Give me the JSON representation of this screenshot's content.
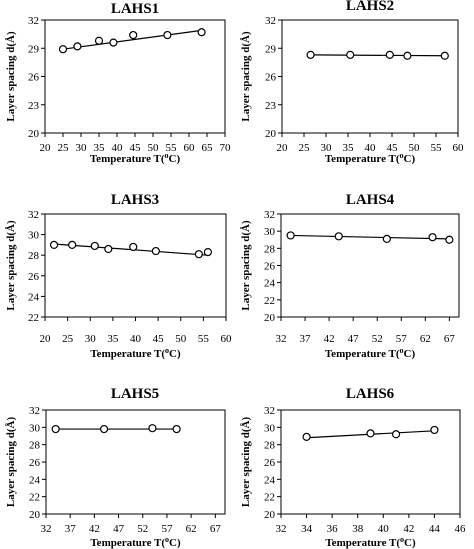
{
  "chart_data": [
    {
      "type": "scatter",
      "title": "LAHS1",
      "xlabel": "Temperature T(",
      "xlabel_unit": "C)",
      "ylabel": "Layer spacing d(Å)",
      "xlim": [
        20,
        70
      ],
      "ylim": [
        20,
        32
      ],
      "xticks": [
        20,
        25,
        30,
        35,
        40,
        45,
        50,
        55,
        60,
        65,
        70
      ],
      "yticks": [
        20,
        23,
        26,
        29,
        32
      ],
      "points": {
        "x": [
          25,
          29,
          35,
          39,
          44.5,
          54,
          63.5
        ],
        "y": [
          28.9,
          29.2,
          29.8,
          29.6,
          30.4,
          30.4,
          30.7
        ]
      },
      "trend": {
        "x": [
          25,
          63.5
        ],
        "y": [
          28.9,
          30.9
        ]
      }
    },
    {
      "type": "scatter",
      "title": "LAHS2",
      "xlabel": "Temperature T(",
      "xlabel_unit": "C)",
      "ylabel": "Layer spacing d(Å)",
      "xlim": [
        20,
        60
      ],
      "ylim": [
        20,
        32
      ],
      "xticks": [
        20,
        25,
        30,
        35,
        40,
        45,
        50,
        55,
        60
      ],
      "yticks": [
        20,
        23,
        26,
        29,
        32
      ],
      "points": {
        "x": [
          26.5,
          35.5,
          44.5,
          48.5,
          57
        ],
        "y": [
          28.3,
          28.3,
          28.3,
          28.2,
          28.2
        ]
      },
      "trend": {
        "x": [
          26.5,
          57
        ],
        "y": [
          28.3,
          28.2
        ]
      }
    },
    {
      "type": "scatter",
      "title": "LAHS3",
      "xlabel": "Temperature T(",
      "xlabel_unit": "C)",
      "ylabel": "Layer spacing d(Å)",
      "xlim": [
        20,
        60
      ],
      "ylim": [
        22,
        32
      ],
      "xticks": [
        20,
        25,
        30,
        35,
        40,
        45,
        50,
        55,
        60
      ],
      "yticks": [
        22,
        24,
        26,
        28,
        30,
        32
      ],
      "points": {
        "x": [
          22,
          26,
          31,
          34,
          39.5,
          44.5,
          54,
          56
        ],
        "y": [
          29.0,
          29.0,
          28.9,
          28.6,
          28.8,
          28.4,
          28.1,
          28.3
        ]
      },
      "trend": {
        "x": [
          21.5,
          56
        ],
        "y": [
          29.1,
          28.0
        ]
      }
    },
    {
      "type": "scatter",
      "title": "LAHS4",
      "xlabel": "Temperature T(",
      "xlabel_unit": "C)",
      "ylabel": "Layer spacing d(Å)",
      "xlim": [
        32,
        69
      ],
      "ylim": [
        20,
        32
      ],
      "xticks": [
        32,
        37,
        42,
        47,
        52,
        57,
        62,
        67
      ],
      "yticks": [
        20,
        22,
        24,
        26,
        28,
        30,
        32
      ],
      "points": {
        "x": [
          34,
          44,
          54,
          63.5,
          67
        ],
        "y": [
          29.5,
          29.4,
          29.1,
          29.3,
          29.0
        ]
      },
      "trend": {
        "x": [
          34,
          67
        ],
        "y": [
          29.5,
          29.1
        ]
      }
    },
    {
      "type": "scatter",
      "title": "LAHS5",
      "xlabel": "Temperature T(",
      "xlabel_unit": "C)",
      "ylabel": "Layer spacing d(Å)",
      "xlim": [
        32,
        69
      ],
      "ylim": [
        20,
        32
      ],
      "xticks": [
        32,
        37,
        42,
        47,
        52,
        57,
        62,
        67
      ],
      "yticks": [
        20,
        22,
        24,
        26,
        28,
        30,
        32
      ],
      "points": {
        "x": [
          34,
          44,
          54,
          59
        ],
        "y": [
          29.8,
          29.8,
          29.9,
          29.8
        ]
      },
      "trend": {
        "x": [
          34,
          59
        ],
        "y": [
          29.8,
          29.8
        ]
      }
    },
    {
      "type": "scatter",
      "title": "LAHS6",
      "xlabel": "Temperature T(",
      "xlabel_unit": "C)",
      "ylabel": "Layer spacing d(Å)",
      "xlim": [
        32,
        46
      ],
      "ylim": [
        20,
        32
      ],
      "xticks": [
        32,
        34,
        36,
        38,
        40,
        42,
        44,
        46
      ],
      "yticks": [
        20,
        22,
        24,
        26,
        28,
        30,
        32
      ],
      "points": {
        "x": [
          34,
          39,
          41,
          44
        ],
        "y": [
          28.9,
          29.3,
          29.2,
          29.7
        ]
      },
      "trend": {
        "x": [
          34,
          44
        ],
        "y": [
          28.8,
          29.6
        ]
      }
    }
  ]
}
